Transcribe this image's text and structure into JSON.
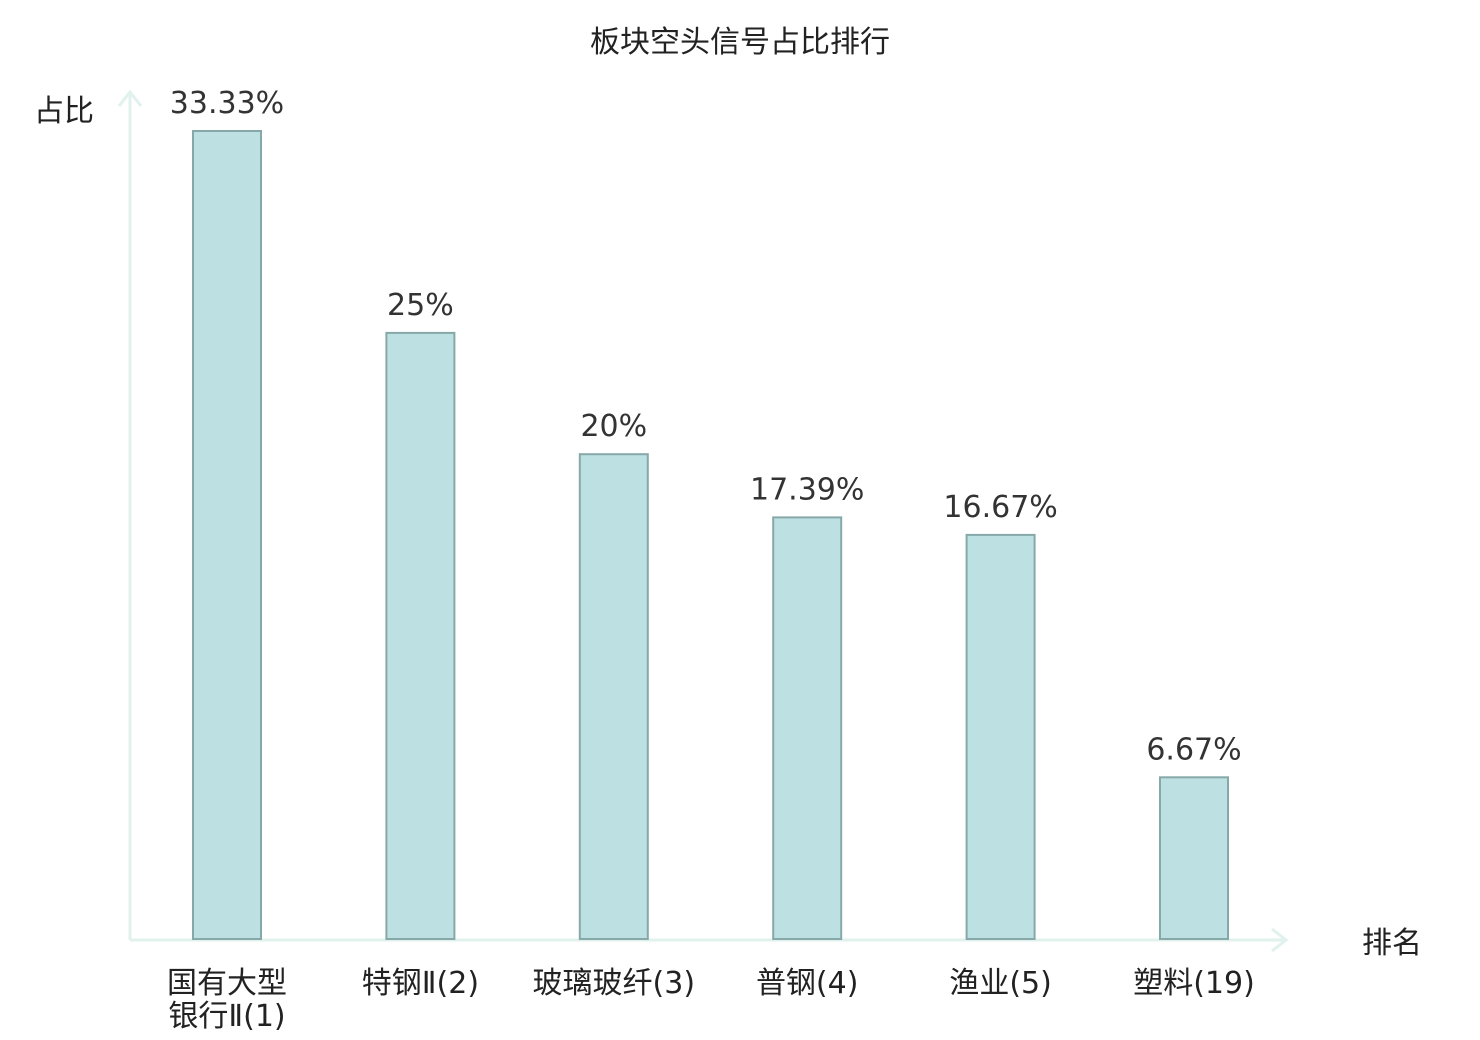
{
  "chart_data": {
    "type": "bar",
    "title": "板块空头信号占比排行",
    "xlabel": "排名",
    "ylabel": "占比",
    "categories": [
      "国有大型银行Ⅱ(1)",
      "特钢Ⅱ(2)",
      "玻璃玻纤(3)",
      "普钢(4)",
      "渔业(5)",
      "塑料(19)"
    ],
    "category_lines": [
      [
        "国有大型",
        "银行Ⅱ(1)"
      ],
      [
        "特钢Ⅱ(2)"
      ],
      [
        "玻璃玻纤(3)"
      ],
      [
        "普钢(4)"
      ],
      [
        "渔业(5)"
      ],
      [
        "塑料(19)"
      ]
    ],
    "values": [
      33.33,
      25,
      20,
      17.39,
      16.67,
      6.67
    ],
    "value_labels": [
      "33.33%",
      "25%",
      "20%",
      "17.39%",
      "16.67%",
      "6.67%"
    ],
    "highlight_index": 5,
    "ylim": [
      0,
      33.33
    ],
    "grid": false,
    "legend": "none",
    "colors": {
      "bar_fill": "#bde0e2",
      "bar_stroke": "#86a8a9",
      "axis": "#e0f1ee",
      "text": "#222222",
      "value_text": "#333333",
      "highlight_text": "#e00000"
    }
  }
}
